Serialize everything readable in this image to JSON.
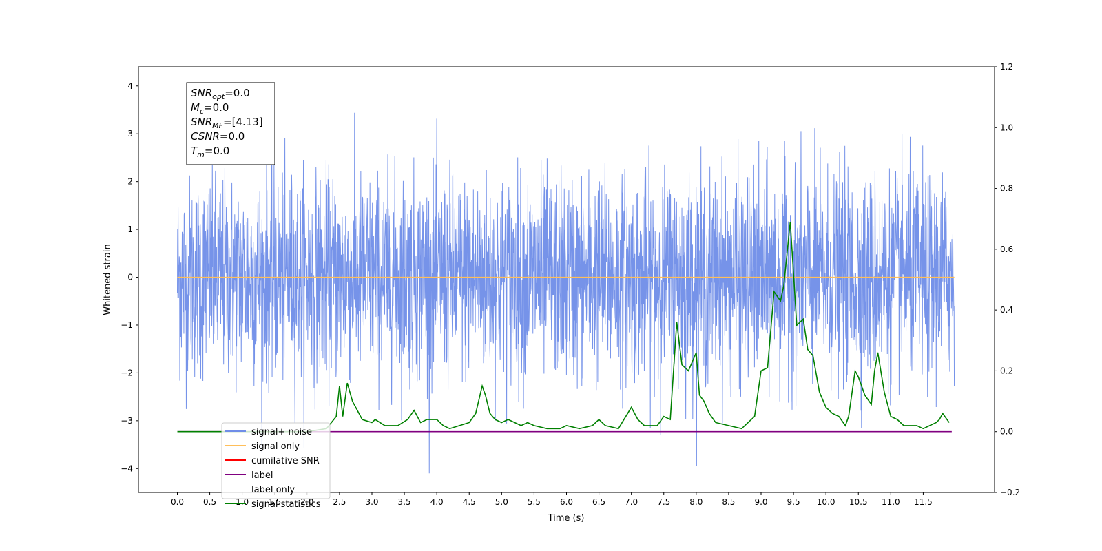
{
  "chart_data": {
    "type": "line",
    "xlabel": "Time (s)",
    "ylabel": "Whitened strain",
    "xlim": [
      -0.6,
      12.6
    ],
    "ylim": [
      -4.5,
      4.4
    ],
    "y2lim": [
      -0.2,
      1.2
    ],
    "x_ticks": [
      "0.0",
      "0.5",
      "1.0",
      "1.5",
      "2.0",
      "2.5",
      "3.0",
      "3.5",
      "4.0",
      "4.5",
      "5.0",
      "5.5",
      "6.0",
      "6.5",
      "7.0",
      "7.5",
      "8.0",
      "8.5",
      "9.0",
      "9.5",
      "10.0",
      "10.5",
      "11.0",
      "11.5"
    ],
    "y_ticks": [
      "4",
      "3",
      "2",
      "1",
      "0",
      "−1",
      "−2",
      "−3",
      "−4"
    ],
    "y2_ticks": [
      "1.2",
      "1.0",
      "0.8",
      "0.6",
      "0.4",
      "0.2",
      "0.0",
      "−0.2"
    ],
    "textbox": [
      {
        "var": "SNR",
        "sub": "opt",
        "value": "=0.0"
      },
      {
        "var": "M",
        "sub": "c",
        "value": "=0.0"
      },
      {
        "var": "SNR",
        "sub": "MF",
        "value": "=[4.13]"
      },
      {
        "var": "CSNR",
        "sub": "",
        "value": "=0.0"
      },
      {
        "var": "T",
        "sub": "m",
        "value": "=0.0"
      }
    ],
    "legend": {
      "position": "lower-left",
      "entries": [
        "signal+ noise",
        "signal only",
        "cumilative SNR",
        "label",
        "label only",
        "signal statistics"
      ]
    },
    "series": [
      {
        "name": "signal+ noise",
        "color": "#6f8de8",
        "axis": "left",
        "noise": {
          "t_start": 0.0,
          "t_end": 11.98,
          "std": 1.0,
          "min": -4.1,
          "max": 3.98
        }
      },
      {
        "name": "signal only",
        "color": "#ffbf5a",
        "axis": "left",
        "x": [
          0.0,
          11.98
        ],
        "y": [
          0.0,
          0.0
        ]
      },
      {
        "name": "cumilative SNR",
        "color": "#ff0000",
        "axis": "right",
        "x": [],
        "y": []
      },
      {
        "name": "label",
        "color": "#800080",
        "axis": "right",
        "x": [
          0.0,
          11.94
        ],
        "y": [
          0.0,
          0.0
        ]
      },
      {
        "name": "label only",
        "color": "#800080",
        "axis": "right",
        "x": [],
        "y": []
      },
      {
        "name": "signal statistics",
        "color": "#008000",
        "axis": "right",
        "x": [
          0.0,
          0.5,
          1.0,
          1.5,
          2.0,
          2.3,
          2.45,
          2.5,
          2.55,
          2.62,
          2.7,
          2.85,
          3.0,
          3.05,
          3.2,
          3.4,
          3.55,
          3.65,
          3.75,
          3.85,
          4.0,
          4.1,
          4.2,
          4.35,
          4.5,
          4.6,
          4.7,
          4.75,
          4.82,
          4.9,
          5.0,
          5.1,
          5.3,
          5.4,
          5.5,
          5.7,
          5.9,
          6.0,
          6.2,
          6.4,
          6.5,
          6.6,
          6.8,
          7.0,
          7.1,
          7.2,
          7.4,
          7.5,
          7.6,
          7.7,
          7.78,
          7.88,
          8.0,
          8.05,
          8.12,
          8.2,
          8.3,
          8.5,
          8.7,
          8.9,
          9.0,
          9.1,
          9.2,
          9.3,
          9.35,
          9.45,
          9.55,
          9.65,
          9.72,
          9.8,
          9.9,
          10.0,
          10.1,
          10.2,
          10.3,
          10.35,
          10.45,
          10.5,
          10.6,
          10.7,
          10.75,
          10.8,
          10.9,
          11.0,
          11.1,
          11.2,
          11.3,
          11.4,
          11.5,
          11.6,
          11.7,
          11.75,
          11.8,
          11.9
        ],
        "y": [
          0.0,
          0.0,
          0.0,
          0.0,
          0.0,
          0.01,
          0.05,
          0.15,
          0.05,
          0.16,
          0.1,
          0.04,
          0.03,
          0.04,
          0.02,
          0.02,
          0.04,
          0.07,
          0.03,
          0.04,
          0.04,
          0.02,
          0.01,
          0.02,
          0.03,
          0.06,
          0.15,
          0.12,
          0.06,
          0.04,
          0.03,
          0.04,
          0.02,
          0.03,
          0.02,
          0.01,
          0.01,
          0.02,
          0.01,
          0.02,
          0.04,
          0.02,
          0.01,
          0.08,
          0.04,
          0.02,
          0.02,
          0.05,
          0.04,
          0.36,
          0.22,
          0.2,
          0.26,
          0.12,
          0.1,
          0.06,
          0.03,
          0.02,
          0.01,
          0.05,
          0.2,
          0.21,
          0.46,
          0.43,
          0.48,
          0.69,
          0.35,
          0.37,
          0.27,
          0.25,
          0.13,
          0.08,
          0.06,
          0.05,
          0.02,
          0.05,
          0.2,
          0.18,
          0.12,
          0.09,
          0.2,
          0.26,
          0.13,
          0.05,
          0.04,
          0.02,
          0.02,
          0.02,
          0.01,
          0.02,
          0.03,
          0.04,
          0.06,
          0.03
        ]
      }
    ]
  }
}
